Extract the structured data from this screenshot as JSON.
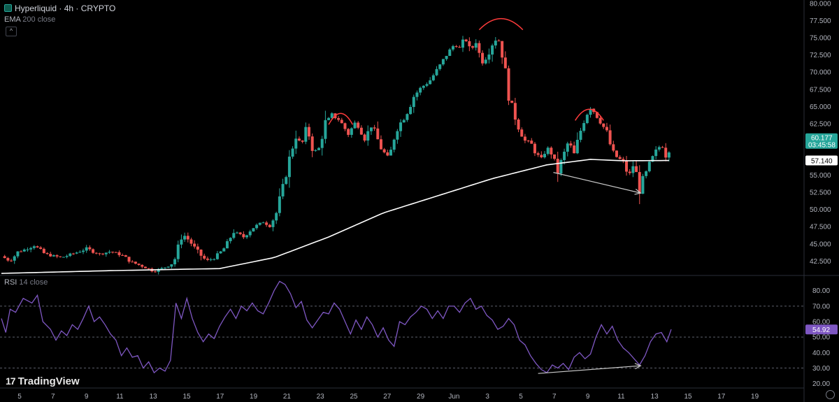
{
  "header": {
    "title": "Hyperliquid · 4h · CRYPTO",
    "indicator": "EMA",
    "indicator_params": "200 close",
    "collapse_glyph": "^"
  },
  "rsi_header": {
    "indicator": "RSI",
    "indicator_params": "14 close"
  },
  "branding": {
    "logo_mark": "17",
    "logo_text": "TradingView"
  },
  "colors": {
    "up": "#26a69a",
    "down": "#ef5350",
    "ema": "#ffffff",
    "rsi": "#7e57c2",
    "price_tag_bg": "#26a69a",
    "rsi_tag_bg": "#7e57c2",
    "annotation_arc": "#ff3b3b",
    "annotation_arrow": "#c8c8c8"
  },
  "tags": {
    "last_price": "60.177",
    "countdown": "03:45:58",
    "ema_value": "57.140",
    "rsi_value": "54.92"
  },
  "chart_data": [
    {
      "type": "candlestick",
      "ylim": [
        40.5,
        80
      ],
      "y_ticks": [
        "80.000",
        "77.500",
        "75.000",
        "72.500",
        "70.000",
        "67.500",
        "65.000",
        "62.500",
        "60.000",
        "57.500",
        "55.000",
        "52.500",
        "50.000",
        "47.500",
        "45.000",
        "42.500"
      ],
      "x_ticks": [
        "5",
        "7",
        "9",
        "11",
        "13",
        "15",
        "17",
        "19",
        "21",
        "23",
        "25",
        "27",
        "29",
        "Jun",
        "3",
        "5",
        "7",
        "9",
        "11",
        "13",
        "15",
        "17",
        "19"
      ],
      "close_path": [
        [
          0,
          43.2
        ],
        [
          8,
          42.5
        ],
        [
          15,
          43.8
        ],
        [
          22,
          44.2
        ],
        [
          30,
          44.8
        ],
        [
          40,
          43.5
        ],
        [
          55,
          43.0
        ],
        [
          70,
          43.8
        ],
        [
          78,
          44.3
        ],
        [
          90,
          43.5
        ],
        [
          100,
          43.9
        ],
        [
          110,
          43.4
        ],
        [
          120,
          42.3
        ],
        [
          130,
          41.7
        ],
        [
          140,
          41.0
        ],
        [
          150,
          41.6
        ],
        [
          158,
          42.3
        ],
        [
          166,
          46.5
        ],
        [
          172,
          45.5
        ],
        [
          180,
          43.8
        ],
        [
          188,
          42.5
        ],
        [
          196,
          43.0
        ],
        [
          205,
          44.5
        ],
        [
          213,
          46.8
        ],
        [
          222,
          46.0
        ],
        [
          230,
          47.3
        ],
        [
          240,
          48.2
        ],
        [
          246,
          47.6
        ],
        [
          252,
          49.5
        ],
        [
          260,
          54.5
        ],
        [
          265,
          58.0
        ],
        [
          270,
          60.8
        ],
        [
          275,
          59.3
        ],
        [
          280,
          62.0
        ],
        [
          285,
          59.0
        ],
        [
          290,
          58.3
        ],
        [
          297,
          62.6
        ],
        [
          303,
          63.8
        ],
        [
          310,
          63.0
        ],
        [
          318,
          61.0
        ],
        [
          325,
          62.8
        ],
        [
          333,
          60.3
        ],
        [
          340,
          62.5
        ],
        [
          347,
          59.2
        ],
        [
          355,
          57.3
        ],
        [
          362,
          61.8
        ],
        [
          370,
          63.5
        ],
        [
          378,
          66.5
        ],
        [
          385,
          67.8
        ],
        [
          392,
          68.6
        ],
        [
          400,
          70.5
        ],
        [
          408,
          72.5
        ],
        [
          415,
          74.0
        ],
        [
          420,
          73.5
        ],
        [
          425,
          75.0
        ],
        [
          430,
          73.0
        ],
        [
          435,
          74.5
        ],
        [
          440,
          71.5
        ],
        [
          445,
          72.3
        ],
        [
          450,
          74.2
        ],
        [
          455,
          75.2
        ],
        [
          460,
          72.0
        ],
        [
          465,
          67.0
        ],
        [
          470,
          64.0
        ],
        [
          475,
          61.5
        ],
        [
          480,
          60.0
        ],
        [
          485,
          59.8
        ],
        [
          490,
          58.2
        ],
        [
          495,
          57.3
        ],
        [
          500,
          59.0
        ],
        [
          505,
          58.0
        ],
        [
          510,
          55.5
        ],
        [
          515,
          57.8
        ],
        [
          520,
          60.0
        ],
        [
          525,
          58.0
        ],
        [
          530,
          61.0
        ],
        [
          535,
          63.5
        ],
        [
          540,
          65.0
        ],
        [
          545,
          63.8
        ],
        [
          550,
          62.5
        ],
        [
          555,
          61.3
        ],
        [
          560,
          58.3
        ],
        [
          565,
          57.5
        ],
        [
          570,
          57.0
        ],
        [
          575,
          54.8
        ],
        [
          580,
          56.8
        ],
        [
          585,
          53.0
        ],
        [
          590,
          55.0
        ],
        [
          595,
          57.0
        ],
        [
          600,
          58.5
        ],
        [
          605,
          59.5
        ],
        [
          610,
          57.5
        ],
        [
          614,
          60.1
        ]
      ],
      "ema_path": [
        [
          0,
          40.7
        ],
        [
          100,
          41.1
        ],
        [
          200,
          41.4
        ],
        [
          250,
          43.0
        ],
        [
          300,
          46.0
        ],
        [
          350,
          49.5
        ],
        [
          400,
          52.0
        ],
        [
          450,
          54.5
        ],
        [
          500,
          56.5
        ],
        [
          540,
          57.3
        ],
        [
          570,
          57.1
        ],
        [
          614,
          57.14
        ]
      ],
      "annotations": {
        "arcs": [
          [
            300,
            322,
            64.2
          ],
          [
            438,
            478,
            78.0
          ],
          [
            526,
            552,
            64.8
          ]
        ],
        "arrow": [
          [
            506,
            55.4
          ],
          [
            586,
            52.4
          ]
        ]
      }
    },
    {
      "type": "line",
      "name": "RSI",
      "ylim": [
        18,
        88
      ],
      "y_ticks": [
        "80.00",
        "70.00",
        "60.00",
        "50.00",
        "40.00",
        "30.00",
        "20.00"
      ],
      "levels": [
        70,
        50,
        30
      ],
      "values": [
        [
          0,
          62
        ],
        [
          4,
          53
        ],
        [
          8,
          68
        ],
        [
          13,
          66
        ],
        [
          20,
          75
        ],
        [
          28,
          72
        ],
        [
          33,
          77
        ],
        [
          38,
          60
        ],
        [
          45,
          55
        ],
        [
          50,
          48
        ],
        [
          55,
          54
        ],
        [
          60,
          51
        ],
        [
          65,
          58
        ],
        [
          70,
          55
        ],
        [
          75,
          62
        ],
        [
          80,
          70
        ],
        [
          85,
          60
        ],
        [
          90,
          63
        ],
        [
          95,
          58
        ],
        [
          100,
          52
        ],
        [
          105,
          48
        ],
        [
          110,
          38
        ],
        [
          115,
          43
        ],
        [
          120,
          37
        ],
        [
          125,
          38
        ],
        [
          130,
          30
        ],
        [
          135,
          34
        ],
        [
          140,
          27
        ],
        [
          145,
          30
        ],
        [
          150,
          28
        ],
        [
          155,
          35
        ],
        [
          160,
          72
        ],
        [
          165,
          62
        ],
        [
          170,
          75
        ],
        [
          175,
          62
        ],
        [
          180,
          53
        ],
        [
          185,
          47
        ],
        [
          190,
          52
        ],
        [
          195,
          49
        ],
        [
          200,
          57
        ],
        [
          205,
          63
        ],
        [
          210,
          68
        ],
        [
          215,
          62
        ],
        [
          220,
          70
        ],
        [
          225,
          67
        ],
        [
          230,
          72
        ],
        [
          235,
          67
        ],
        [
          240,
          65
        ],
        [
          245,
          72
        ],
        [
          250,
          80
        ],
        [
          255,
          86
        ],
        [
          260,
          84
        ],
        [
          265,
          78
        ],
        [
          270,
          69
        ],
        [
          275,
          73
        ],
        [
          280,
          61
        ],
        [
          285,
          56
        ],
        [
          290,
          61
        ],
        [
          295,
          66
        ],
        [
          300,
          65
        ],
        [
          305,
          72
        ],
        [
          310,
          68
        ],
        [
          315,
          60
        ],
        [
          320,
          52
        ],
        [
          325,
          61
        ],
        [
          330,
          55
        ],
        [
          335,
          63
        ],
        [
          340,
          58
        ],
        [
          345,
          50
        ],
        [
          350,
          56
        ],
        [
          355,
          48
        ],
        [
          360,
          44
        ],
        [
          365,
          60
        ],
        [
          370,
          58
        ],
        [
          375,
          63
        ],
        [
          380,
          66
        ],
        [
          385,
          70
        ],
        [
          390,
          68
        ],
        [
          395,
          62
        ],
        [
          400,
          67
        ],
        [
          405,
          62
        ],
        [
          410,
          70
        ],
        [
          415,
          70
        ],
        [
          420,
          66
        ],
        [
          425,
          72
        ],
        [
          430,
          75
        ],
        [
          435,
          68
        ],
        [
          440,
          70
        ],
        [
          445,
          64
        ],
        [
          450,
          61
        ],
        [
          455,
          55
        ],
        [
          460,
          57
        ],
        [
          465,
          62
        ],
        [
          470,
          58
        ],
        [
          475,
          48
        ],
        [
          480,
          45
        ],
        [
          485,
          38
        ],
        [
          490,
          33
        ],
        [
          495,
          29
        ],
        [
          500,
          27
        ],
        [
          505,
          32
        ],
        [
          510,
          30
        ],
        [
          515,
          33
        ],
        [
          520,
          29
        ],
        [
          525,
          37
        ],
        [
          530,
          40
        ],
        [
          535,
          36
        ],
        [
          540,
          39
        ],
        [
          545,
          50
        ],
        [
          550,
          58
        ],
        [
          555,
          52
        ],
        [
          560,
          57
        ],
        [
          565,
          48
        ],
        [
          570,
          43
        ],
        [
          575,
          40
        ],
        [
          580,
          36
        ],
        [
          585,
          32
        ],
        [
          590,
          38
        ],
        [
          595,
          47
        ],
        [
          600,
          52
        ],
        [
          605,
          53
        ],
        [
          610,
          47
        ],
        [
          614,
          55
        ]
      ],
      "annotations": {
        "arrow": [
          [
            492,
            26.5
          ],
          [
            586,
            31.5
          ]
        ]
      }
    }
  ]
}
